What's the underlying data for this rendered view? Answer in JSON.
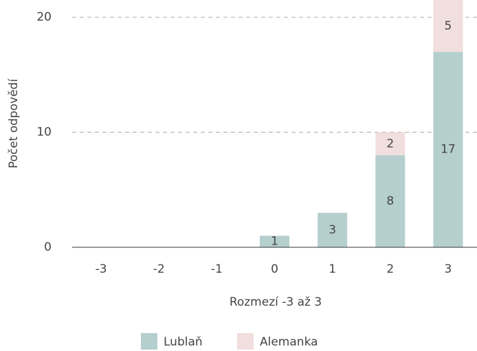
{
  "chart_data": {
    "type": "stacked_bar",
    "x_label": "Rozmezí -3 až 3",
    "y_label": "Počet odpovědí",
    "categories": [
      "-3",
      "-2",
      "-1",
      "0",
      "1",
      "2",
      "3"
    ],
    "series": [
      {
        "name": "Lublaň",
        "color": "#b5cfce",
        "values": [
          0,
          0,
          0,
          1,
          3,
          8,
          17
        ]
      },
      {
        "name": "Alemanka",
        "color": "#f1dede",
        "values": [
          0,
          0,
          0,
          0,
          0,
          2,
          5
        ]
      }
    ],
    "ylim": [
      0,
      21.5
    ],
    "yticks": [
      0,
      10,
      20
    ],
    "grid": true,
    "legend": "bottom"
  }
}
